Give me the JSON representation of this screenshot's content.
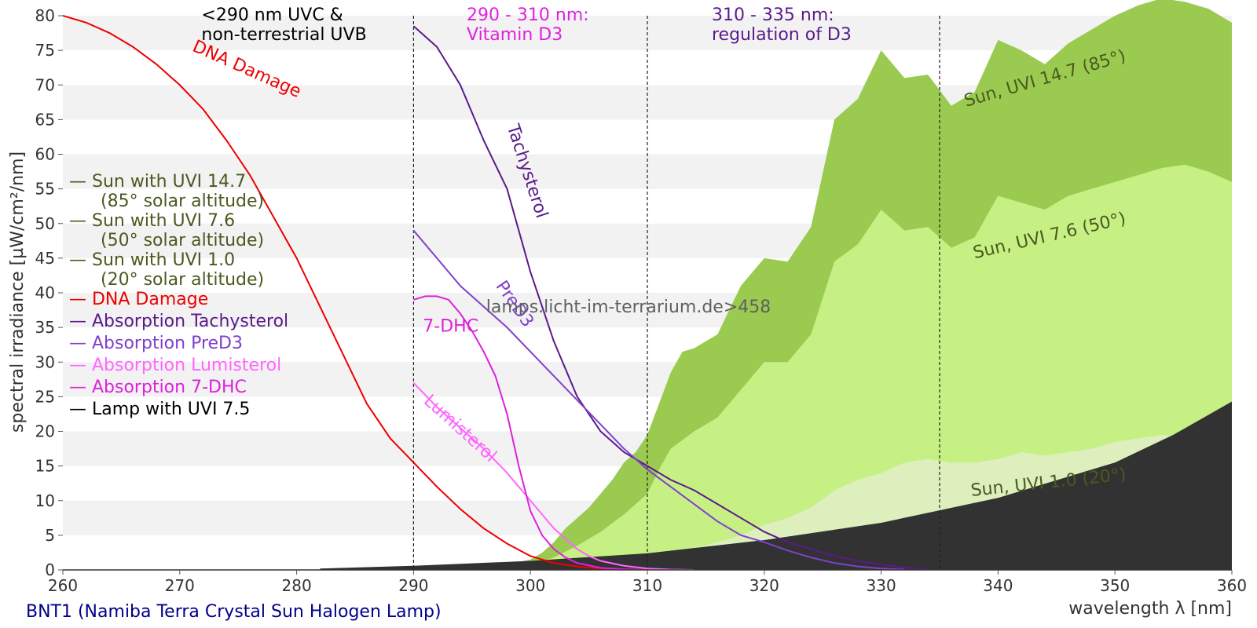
{
  "chart_data": {
    "type": "area",
    "title": "BNT1 (Namiba Terra Crystal Sun Halogen Lamp)",
    "xlabel": "wavelength λ [nm]",
    "ylabel": "spectral irradiance [µW/cm²/nm]",
    "xlim": [
      260,
      360
    ],
    "ylim": [
      0,
      80
    ],
    "xticks": [
      260,
      270,
      280,
      290,
      300,
      310,
      320,
      330,
      340,
      350,
      360
    ],
    "yticks": [
      0,
      5,
      10,
      15,
      20,
      25,
      30,
      35,
      40,
      45,
      50,
      55,
      60,
      65,
      70,
      75,
      80
    ],
    "watermark": "lamps.licht-im-terrarium.de>458",
    "regions": [
      {
        "x": 290,
        "label_lines": [
          "<290 nm UVC &",
          "non-terrestrial UVB"
        ],
        "color": "#000000"
      },
      {
        "x": 310,
        "label_lines": [
          "290 - 310 nm:",
          "Vitamin D3"
        ],
        "color": "#e020e0"
      },
      {
        "x": 335,
        "label_lines": [
          "310 - 335 nm:",
          "regulation of D3"
        ],
        "color": "#5a1a8a"
      }
    ],
    "legend": [
      {
        "label": "— Sun with UVI 14.7",
        "sub": "(85° solar altitude)",
        "color": "#4a5a1f"
      },
      {
        "label": "— Sun with UVI 7.6",
        "sub": "(50° solar altitude)",
        "color": "#4a5a1f"
      },
      {
        "label": "— Sun with UVI 1.0",
        "sub": "(20° solar altitude)",
        "color": "#4a5a1f"
      },
      {
        "label": "— DNA Damage",
        "color": "#ee0000"
      },
      {
        "label": "— Absorption Tachysterol",
        "color": "#5a1a8a"
      },
      {
        "label": "— Absorption PreD3",
        "color": "#8040cc"
      },
      {
        "label": "— Absorption Lumisterol",
        "color": "#ff66ff"
      },
      {
        "label": "— Absorption 7-DHC",
        "color": "#dd22dd"
      },
      {
        "label": "— Lamp with UVI 7.5",
        "color": "#000000"
      }
    ],
    "series": [
      {
        "name": "Sun, UVI 14.7 (85°)",
        "kind": "area",
        "color": "#9acb50",
        "x": [
          294,
          296,
          298,
          300,
          301,
          302,
          303,
          304,
          305,
          306,
          307,
          308,
          309,
          310,
          311,
          312,
          313,
          314,
          316,
          318,
          320,
          322,
          324,
          326,
          328,
          330,
          332,
          334,
          336,
          338,
          340,
          342,
          344,
          346,
          348,
          350,
          352,
          354,
          356,
          358,
          360
        ],
        "y": [
          0,
          0.3,
          0.8,
          1.5,
          2.5,
          4,
          6,
          7.5,
          9,
          11,
          13,
          15.5,
          17,
          19.5,
          24,
          28.5,
          31.5,
          32,
          34,
          41,
          45,
          44.5,
          49.5,
          65,
          68,
          75,
          71,
          71.5,
          67,
          69,
          76.5,
          75,
          73,
          76,
          78,
          80,
          81.5,
          82.5,
          82,
          81,
          79
        ]
      },
      {
        "name": "Sun, UVI 7.6 (50°)",
        "kind": "area",
        "color": "#c6ef84",
        "x": [
          296,
          298,
          300,
          302,
          304,
          306,
          308,
          309,
          310,
          311,
          312,
          314,
          316,
          318,
          320,
          322,
          324,
          326,
          328,
          330,
          332,
          334,
          336,
          338,
          340,
          342,
          344,
          346,
          348,
          350,
          352,
          354,
          356,
          358,
          360
        ],
        "y": [
          0,
          0.3,
          0.8,
          1.8,
          3.5,
          5.5,
          8,
          9.5,
          11,
          14.5,
          17.5,
          20,
          22,
          26,
          30,
          30,
          34,
          44.5,
          47,
          52,
          49,
          49.5,
          46.5,
          48,
          54,
          53,
          52,
          54,
          55,
          56,
          57,
          58,
          58.5,
          57.5,
          56
        ]
      },
      {
        "name": "Sun, UVI 1.0 (20°)",
        "kind": "area",
        "color": "#dcefbc",
        "x": [
          302,
          304,
          306,
          308,
          310,
          312,
          314,
          316,
          318,
          320,
          322,
          324,
          326,
          328,
          330,
          332,
          334,
          336,
          338,
          340,
          342,
          344,
          346,
          348,
          350,
          352,
          354,
          356,
          358,
          360
        ],
        "y": [
          0,
          0.2,
          0.5,
          0.9,
          1.4,
          2.2,
          3.2,
          4,
          5,
          6.5,
          7.5,
          9,
          11.5,
          13,
          14,
          15.5,
          16,
          15.5,
          15.5,
          16,
          17,
          16.5,
          17,
          17.5,
          18.5,
          19,
          19.5,
          19,
          18.5,
          18
        ]
      },
      {
        "name": "Lamp with UVI 7.5",
        "kind": "area",
        "color": "#323232",
        "x": [
          282,
          290,
          300,
          310,
          320,
          330,
          340,
          350,
          355,
          360
        ],
        "y": [
          0.2,
          0.6,
          1.3,
          2.4,
          4.3,
          6.8,
          10.4,
          15.5,
          19.5,
          24.3
        ]
      },
      {
        "name": "DNA Damage",
        "kind": "line",
        "color": "#ee0000",
        "x": [
          260,
          262,
          264,
          266,
          268,
          270,
          272,
          274,
          276,
          278,
          280,
          282,
          284,
          286,
          288,
          290,
          292,
          294,
          296,
          298,
          300,
          302,
          304,
          306,
          308,
          310,
          312
        ],
        "y": [
          80,
          79,
          77.5,
          75.5,
          73,
          70,
          66.5,
          62,
          57,
          51,
          45,
          38,
          31,
          24,
          19,
          15.5,
          12,
          8.8,
          6,
          3.8,
          2,
          1,
          0.5,
          0.2,
          0.08,
          0.03,
          0.01
        ]
      },
      {
        "name": "Absorption Tachysterol",
        "kind": "line",
        "color": "#5a1a8a",
        "x": [
          290,
          292,
          294,
          296,
          298,
          300,
          302,
          304,
          306,
          308,
          310,
          312,
          314,
          316,
          318,
          320,
          322,
          324,
          326,
          328,
          330,
          332,
          334
        ],
        "y": [
          78.5,
          75.5,
          70,
          62,
          55,
          43,
          33,
          25,
          20,
          17,
          15,
          13,
          11.5,
          9.5,
          7.5,
          5.5,
          4,
          3,
          2,
          1.3,
          0.8,
          0.3,
          0.1
        ]
      },
      {
        "name": "Absorption PreD3",
        "kind": "line",
        "color": "#8040cc",
        "x": [
          290,
          292,
          294,
          296,
          298,
          300,
          302,
          304,
          306,
          308,
          310,
          312,
          314,
          316,
          318,
          320,
          322,
          324,
          326,
          328,
          330,
          332
        ],
        "y": [
          49,
          45,
          41,
          38,
          35,
          31.5,
          28,
          24.5,
          21,
          17.5,
          14.5,
          12,
          9.5,
          7,
          5,
          4,
          2.8,
          1.8,
          1,
          0.5,
          0.2,
          0.05
        ]
      },
      {
        "name": "Absorption Lumisterol",
        "kind": "line",
        "color": "#ff66ff",
        "x": [
          290,
          292,
          294,
          296,
          298,
          300,
          301,
          302,
          303,
          304,
          305,
          306,
          308,
          310,
          312,
          314
        ],
        "y": [
          27,
          23.5,
          20.5,
          17.5,
          14,
          10,
          8,
          6,
          4.5,
          3,
          2,
          1.3,
          0.6,
          0.2,
          0.05,
          0
        ]
      },
      {
        "name": "Absorption 7-DHC",
        "kind": "line",
        "color": "#dd22dd",
        "x": [
          290,
          291,
          292,
          293,
          294,
          295,
          296,
          297,
          298,
          299,
          300,
          301,
          302,
          303,
          304,
          306,
          308,
          310
        ],
        "y": [
          39,
          39.5,
          39.5,
          39,
          37,
          34.5,
          31.5,
          28,
          22.5,
          15,
          8.5,
          5,
          3,
          1.8,
          1,
          0.3,
          0.1,
          0
        ]
      }
    ],
    "annotations": [
      {
        "text": "DNA Damage",
        "x": 271,
        "y": 75,
        "angle": 24,
        "color": "#ee0000"
      },
      {
        "text": "Tachysterol",
        "x": 298,
        "y": 64,
        "angle": 72,
        "color": "#5a1a8a"
      },
      {
        "text": "PreD3",
        "x": 297,
        "y": 41,
        "angle": 55,
        "color": "#8040cc"
      },
      {
        "text": "7-DHC",
        "x": 290.8,
        "y": 34.4,
        "angle": 0,
        "color": "#dd22dd"
      },
      {
        "text": "Lumisterol",
        "x": 290.8,
        "y": 24.2,
        "angle": 42,
        "color": "#ff66ff"
      },
      {
        "text": "Sun, UVI 14.7 (85°)",
        "x": 351,
        "y": 73.5,
        "angle": -16,
        "color": "#4a5a1f"
      },
      {
        "text": "Sun, UVI 7.6 (50°)",
        "x": 351,
        "y": 50,
        "angle": -13,
        "color": "#4a5a1f"
      },
      {
        "text": "Sun, UVI 1.0 (20°)",
        "x": 351,
        "y": 13,
        "angle": -6,
        "color": "#4a5a1f"
      }
    ]
  }
}
